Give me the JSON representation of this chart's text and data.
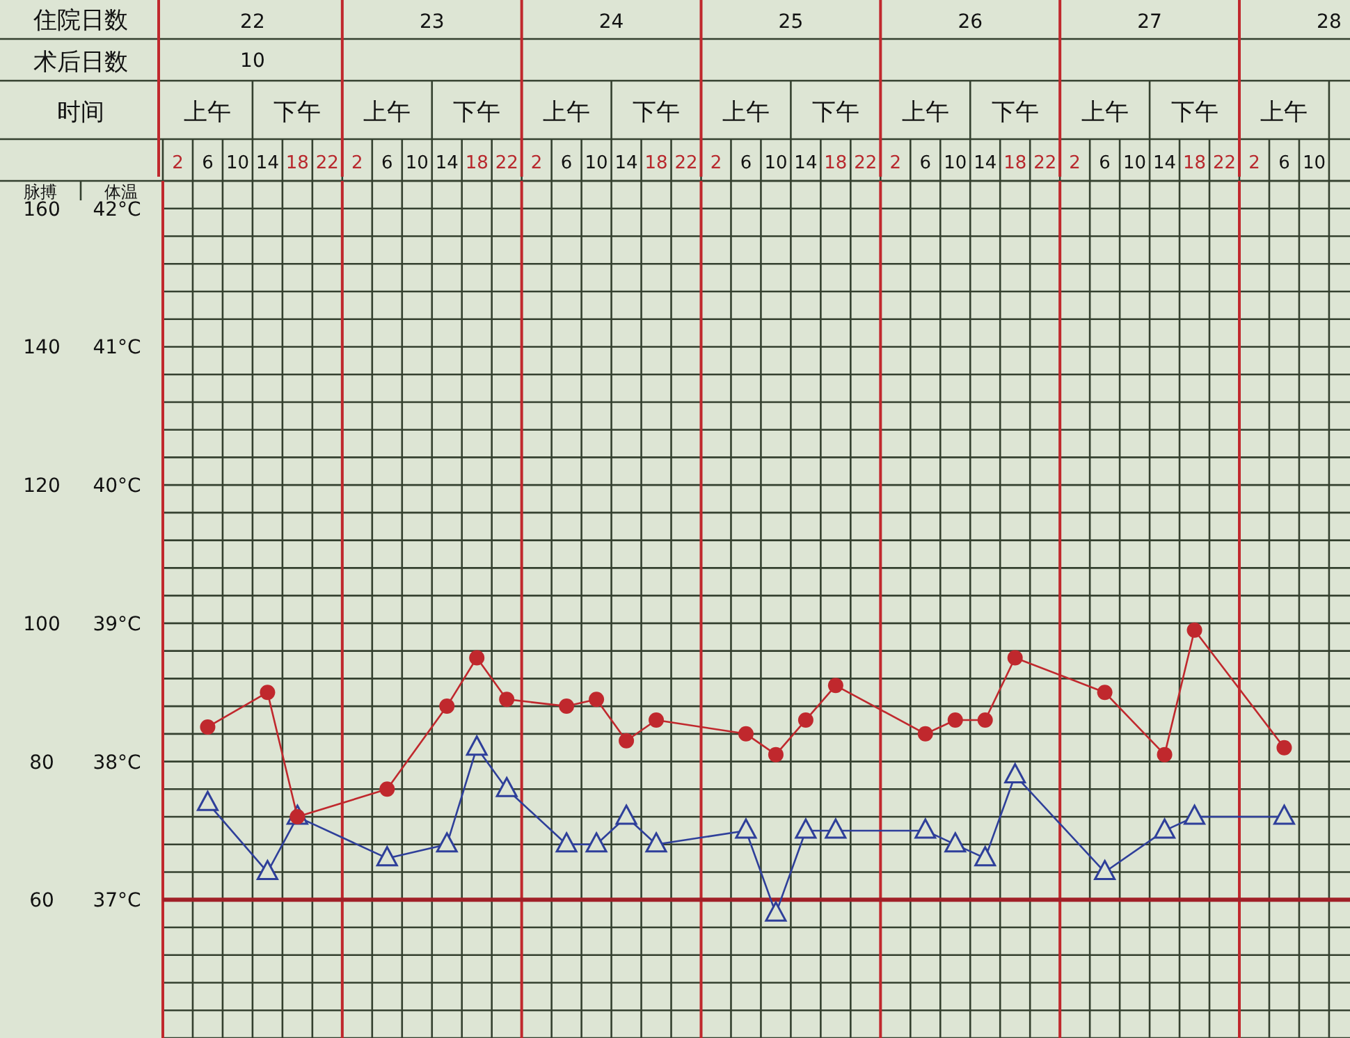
{
  "chart_data": {
    "type": "line",
    "x2label": "住院日数",
    "xlabel": "时间",
    "ylabel": "脉搏",
    "y2label": "体温",
    "annotations": [
      "术后日数",
      "10",
      "上午",
      "下午",
      "22",
      "23",
      "24",
      "25",
      "26",
      "27",
      "28"
    ],
    "categories": [
      "2",
      "6",
      "10",
      "14",
      "18",
      "22",
      "2",
      "6",
      "10",
      "14",
      "18",
      "22",
      "2",
      "6",
      "10",
      "14",
      "18",
      "22",
      "2",
      "6",
      "10",
      "14",
      "18",
      "22",
      "2",
      "6",
      "10",
      "14",
      "18",
      "22",
      "2",
      "6",
      "10",
      "14",
      "18",
      "22",
      "2",
      "6",
      "10"
    ],
    "ylim": [
      40,
      164
    ],
    "y2lim": [
      36,
      42.2
    ],
    "yticks": [
      60,
      80,
      100,
      120,
      140,
      160
    ],
    "y2ticks": [
      {
        "value": 37,
        "label": "37°C"
      },
      {
        "value": 38,
        "label": "38°C"
      },
      {
        "value": 39,
        "label": "39°C"
      },
      {
        "value": 40,
        "label": "40°C"
      },
      {
        "value": 41,
        "label": "41°C"
      },
      {
        "value": 42,
        "label": "42°C"
      }
    ],
    "grid": true,
    "ref_lines": [
      {
        "axis": "y2",
        "value": 37,
        "color": "#a02028"
      }
    ],
    "series": [
      {
        "color": "#c0282d",
        "marker": "circle",
        "values": [
          null,
          85,
          null,
          90,
          72,
          null,
          null,
          76,
          null,
          88,
          95,
          89,
          null,
          88,
          89,
          83,
          86,
          null,
          null,
          84,
          81,
          86,
          91,
          null,
          null,
          84,
          86,
          86,
          95,
          null,
          null,
          90,
          null,
          81,
          99,
          null,
          null,
          82,
          null
        ]
      },
      {
        "color": "#2e3f9a",
        "marker": "triangle",
        "axis": "y2",
        "values": [
          null,
          37.7,
          null,
          37.2,
          37.6,
          null,
          null,
          37.3,
          null,
          37.4,
          38.1,
          37.8,
          null,
          37.4,
          37.4,
          37.6,
          37.4,
          null,
          null,
          37.5,
          36.9,
          37.5,
          37.5,
          null,
          null,
          37.5,
          37.4,
          37.3,
          37.9,
          null,
          null,
          37.2,
          null,
          37.5,
          37.6,
          null,
          null,
          37.6,
          null
        ]
      }
    ]
  }
}
